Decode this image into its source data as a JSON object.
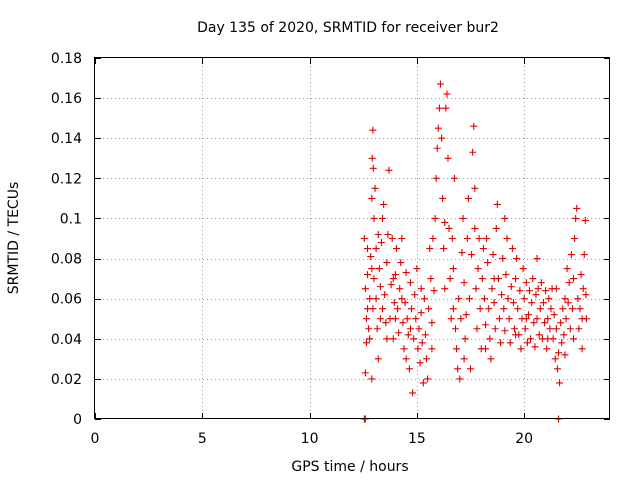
{
  "chart_data": {
    "type": "scatter",
    "title": "Day 135 of 2020, SRMTID for receiver bur2",
    "xlabel": "GPS time / hours",
    "ylabel": "SRMTID / TECUs",
    "xlim": [
      0,
      24
    ],
    "ylim": [
      0,
      0.18
    ],
    "xticks": [
      0,
      5,
      10,
      15,
      20
    ],
    "yticks": [
      0,
      0.02,
      0.04,
      0.06,
      0.08,
      0.1,
      0.12,
      0.14,
      0.16,
      0.18
    ],
    "xtick_labels": [
      "0",
      "5",
      "10",
      "15",
      "20"
    ],
    "ytick_labels": [
      "0",
      "0.02",
      "0.04",
      "0.06",
      "0.08",
      "0.1",
      "0.12",
      "0.14",
      "0.16",
      "0.18"
    ],
    "grid": true,
    "marker": "+",
    "color": "#e00000",
    "series": [
      {
        "name": "SRMTID",
        "points": [
          [
            12.55,
            0.0
          ],
          [
            12.6,
            0.0
          ],
          [
            12.55,
            0.09
          ],
          [
            12.6,
            0.065
          ],
          [
            12.65,
            0.05
          ],
          [
            12.7,
            0.085
          ],
          [
            12.75,
            0.045
          ],
          [
            12.8,
            0.06
          ],
          [
            12.6,
            0.023
          ],
          [
            12.65,
            0.038
          ],
          [
            12.7,
            0.072
          ],
          [
            12.8,
            0.04
          ],
          [
            12.85,
            0.081
          ],
          [
            12.9,
            0.11
          ],
          [
            12.92,
            0.13
          ],
          [
            12.95,
            0.144
          ],
          [
            12.97,
            0.125
          ],
          [
            12.9,
            0.02
          ],
          [
            12.95,
            0.055
          ],
          [
            13.0,
            0.07
          ],
          [
            13.0,
            0.1
          ],
          [
            13.05,
            0.115
          ],
          [
            13.1,
            0.06
          ],
          [
            13.1,
            0.085
          ],
          [
            13.15,
            0.045
          ],
          [
            13.2,
            0.092
          ],
          [
            13.25,
            0.075
          ],
          [
            13.3,
            0.05
          ],
          [
            13.3,
            0.066
          ],
          [
            13.35,
            0.088
          ],
          [
            13.4,
            0.1
          ],
          [
            13.45,
            0.107
          ],
          [
            13.5,
            0.062
          ],
          [
            13.55,
            0.048
          ],
          [
            13.6,
            0.078
          ],
          [
            13.65,
            0.092
          ],
          [
            13.7,
            0.124
          ],
          [
            13.75,
            0.05
          ],
          [
            13.8,
            0.067
          ],
          [
            13.85,
            0.09
          ],
          [
            13.9,
            0.04
          ],
          [
            13.95,
            0.058
          ],
          [
            14.0,
            0.072
          ],
          [
            14.05,
            0.085
          ],
          [
            14.1,
            0.055
          ],
          [
            14.15,
            0.043
          ],
          [
            14.2,
            0.065
          ],
          [
            14.25,
            0.078
          ],
          [
            14.3,
            0.06
          ],
          [
            14.35,
            0.048
          ],
          [
            14.4,
            0.035
          ],
          [
            14.45,
            0.058
          ],
          [
            14.5,
            0.073
          ],
          [
            14.55,
            0.05
          ],
          [
            14.6,
            0.042
          ],
          [
            14.65,
            0.025
          ],
          [
            14.7,
            0.068
          ],
          [
            14.75,
            0.055
          ],
          [
            14.8,
            0.013
          ],
          [
            14.85,
            0.04
          ],
          [
            14.9,
            0.062
          ],
          [
            14.95,
            0.05
          ],
          [
            15.0,
            0.075
          ],
          [
            15.05,
            0.035
          ],
          [
            15.1,
            0.045
          ],
          [
            15.15,
            0.028
          ],
          [
            15.2,
            0.053
          ],
          [
            15.25,
            0.038
          ],
          [
            15.3,
            0.018
          ],
          [
            15.35,
            0.06
          ],
          [
            15.4,
            0.042
          ],
          [
            15.45,
            0.03
          ],
          [
            15.5,
            0.02
          ],
          [
            15.55,
            0.055
          ],
          [
            15.6,
            0.085
          ],
          [
            15.65,
            0.07
          ],
          [
            15.7,
            0.048
          ],
          [
            15.75,
            0.09
          ],
          [
            15.8,
            0.064
          ],
          [
            15.85,
            0.1
          ],
          [
            15.9,
            0.12
          ],
          [
            15.95,
            0.135
          ],
          [
            16.0,
            0.145
          ],
          [
            16.05,
            0.155
          ],
          [
            16.1,
            0.167
          ],
          [
            16.15,
            0.14
          ],
          [
            16.2,
            0.11
          ],
          [
            16.25,
            0.085
          ],
          [
            16.3,
            0.065
          ],
          [
            16.35,
            0.155
          ],
          [
            16.4,
            0.162
          ],
          [
            16.45,
            0.13
          ],
          [
            16.5,
            0.095
          ],
          [
            16.55,
            0.07
          ],
          [
            16.6,
            0.05
          ],
          [
            16.65,
            0.09
          ],
          [
            16.7,
            0.075
          ],
          [
            16.75,
            0.12
          ],
          [
            16.8,
            0.045
          ],
          [
            16.85,
            0.035
          ],
          [
            16.9,
            0.025
          ],
          [
            16.95,
            0.06
          ],
          [
            17.0,
            0.02
          ],
          [
            17.05,
            0.05
          ],
          [
            17.1,
            0.083
          ],
          [
            17.15,
            0.1
          ],
          [
            17.2,
            0.068
          ],
          [
            17.25,
            0.04
          ],
          [
            17.3,
            0.052
          ],
          [
            17.35,
            0.09
          ],
          [
            17.4,
            0.11
          ],
          [
            17.45,
            0.06
          ],
          [
            17.5,
            0.025
          ],
          [
            17.55,
            0.082
          ],
          [
            17.6,
            0.133
          ],
          [
            17.65,
            0.146
          ],
          [
            17.7,
            0.115
          ],
          [
            17.75,
            0.065
          ],
          [
            17.8,
            0.045
          ],
          [
            17.85,
            0.075
          ],
          [
            17.9,
            0.09
          ],
          [
            17.95,
            0.055
          ],
          [
            18.0,
            0.035
          ],
          [
            18.05,
            0.07
          ],
          [
            18.1,
            0.085
          ],
          [
            18.15,
            0.06
          ],
          [
            18.2,
            0.047
          ],
          [
            18.25,
            0.09
          ],
          [
            18.3,
            0.078
          ],
          [
            18.35,
            0.055
          ],
          [
            18.4,
            0.04
          ],
          [
            18.45,
            0.03
          ],
          [
            18.5,
            0.065
          ],
          [
            18.55,
            0.082
          ],
          [
            18.6,
            0.058
          ],
          [
            18.65,
            0.045
          ],
          [
            18.7,
            0.095
          ],
          [
            18.75,
            0.107
          ],
          [
            18.8,
            0.07
          ],
          [
            18.85,
            0.05
          ],
          [
            18.9,
            0.038
          ],
          [
            18.95,
            0.062
          ],
          [
            19.0,
            0.08
          ],
          [
            19.05,
            0.055
          ],
          [
            19.1,
            0.044
          ],
          [
            19.15,
            0.072
          ],
          [
            19.2,
            0.09
          ],
          [
            19.25,
            0.06
          ],
          [
            19.3,
            0.05
          ],
          [
            19.35,
            0.038
          ],
          [
            19.4,
            0.066
          ],
          [
            19.45,
            0.085
          ],
          [
            19.5,
            0.058
          ],
          [
            19.55,
            0.045
          ],
          [
            19.6,
            0.07
          ],
          [
            19.65,
            0.08
          ],
          [
            19.7,
            0.055
          ],
          [
            19.75,
            0.042
          ],
          [
            19.8,
            0.064
          ],
          [
            19.85,
            0.035
          ],
          [
            19.9,
            0.05
          ],
          [
            19.95,
            0.075
          ],
          [
            20.0,
            0.06
          ],
          [
            20.05,
            0.045
          ],
          [
            20.1,
            0.068
          ],
          [
            20.15,
            0.038
          ],
          [
            20.2,
            0.052
          ],
          [
            20.25,
            0.064
          ],
          [
            20.3,
            0.04
          ],
          [
            20.35,
            0.058
          ],
          [
            20.4,
            0.07
          ],
          [
            20.45,
            0.048
          ],
          [
            20.5,
            0.036
          ],
          [
            20.55,
            0.062
          ],
          [
            20.6,
            0.05
          ],
          [
            20.65,
            0.065
          ],
          [
            20.7,
            0.042
          ],
          [
            20.75,
            0.055
          ],
          [
            20.8,
            0.068
          ],
          [
            20.85,
            0.04
          ],
          [
            20.9,
            0.058
          ],
          [
            20.95,
            0.048
          ],
          [
            21.0,
            0.064
          ],
          [
            21.05,
            0.035
          ],
          [
            21.1,
            0.05
          ],
          [
            21.15,
            0.06
          ],
          [
            21.2,
            0.045
          ],
          [
            21.25,
            0.055
          ],
          [
            21.3,
            0.065
          ],
          [
            21.35,
            0.04
          ],
          [
            21.4,
            0.052
          ],
          [
            21.45,
            0.03
          ],
          [
            21.5,
            0.045
          ],
          [
            21.55,
            0.025
          ],
          [
            21.6,
            0.033
          ],
          [
            21.65,
            0.018
          ],
          [
            21.7,
            0.048
          ],
          [
            21.75,
            0.038
          ],
          [
            21.8,
            0.055
          ],
          [
            21.85,
            0.042
          ],
          [
            21.9,
            0.06
          ],
          [
            21.95,
            0.05
          ],
          [
            22.0,
            0.075
          ],
          [
            22.05,
            0.058
          ],
          [
            22.1,
            0.068
          ],
          [
            22.15,
            0.045
          ],
          [
            22.2,
            0.082
          ],
          [
            22.25,
            0.055
          ],
          [
            22.3,
            0.07
          ],
          [
            22.35,
            0.09
          ],
          [
            22.4,
            0.1
          ],
          [
            22.45,
            0.105
          ],
          [
            22.5,
            0.06
          ],
          [
            22.55,
            0.045
          ],
          [
            22.6,
            0.055
          ],
          [
            22.65,
            0.072
          ],
          [
            22.7,
            0.05
          ],
          [
            22.75,
            0.065
          ],
          [
            22.8,
            0.082
          ],
          [
            22.85,
            0.099
          ],
          [
            22.88,
            0.062
          ],
          [
            22.9,
            0.05
          ],
          [
            21.6,
            0.0
          ],
          [
            12.7,
            0.055
          ],
          [
            13.2,
            0.03
          ],
          [
            13.6,
            0.04
          ],
          [
            14.0,
            0.05
          ],
          [
            14.3,
            0.09
          ],
          [
            14.5,
            0.03
          ],
          [
            15.2,
            0.065
          ],
          [
            15.7,
            0.035
          ],
          [
            16.3,
            0.098
          ],
          [
            16.7,
            0.055
          ],
          [
            17.2,
            0.03
          ],
          [
            17.7,
            0.095
          ],
          [
            18.2,
            0.035
          ],
          [
            18.6,
            0.07
          ],
          [
            19.1,
            0.1
          ],
          [
            19.6,
            0.042
          ],
          [
            20.1,
            0.05
          ],
          [
            20.6,
            0.08
          ],
          [
            21.1,
            0.04
          ],
          [
            21.5,
            0.065
          ],
          [
            21.9,
            0.032
          ],
          [
            22.3,
            0.04
          ],
          [
            22.7,
            0.035
          ],
          [
            12.9,
            0.075
          ],
          [
            13.4,
            0.055
          ],
          [
            13.9,
            0.07
          ],
          [
            14.7,
            0.045
          ]
        ]
      }
    ]
  }
}
